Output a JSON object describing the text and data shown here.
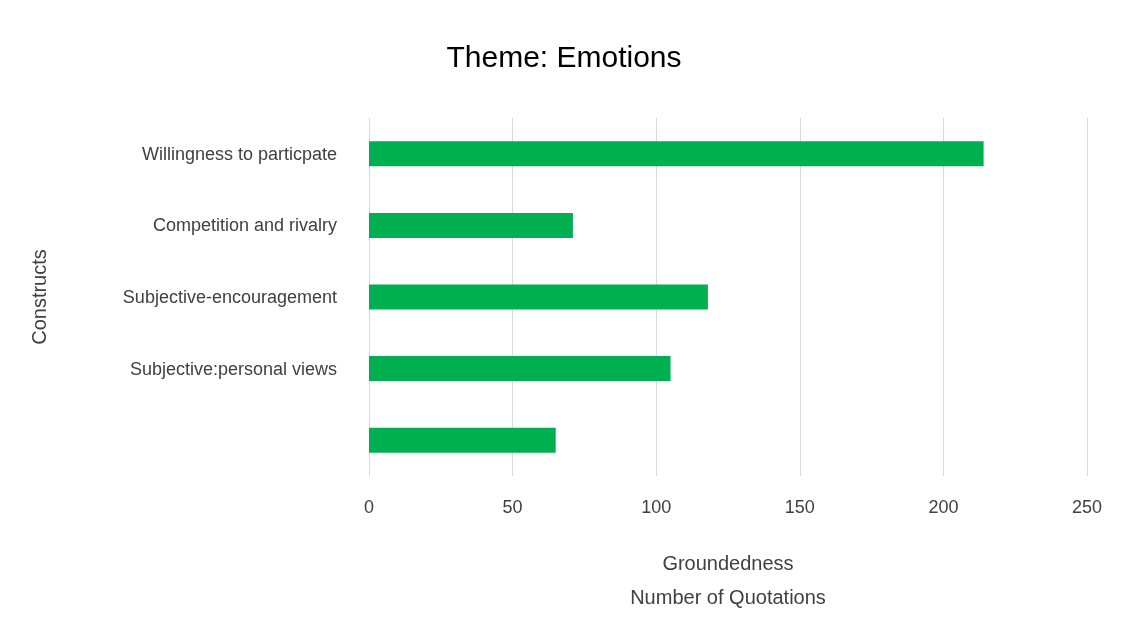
{
  "chart_data": {
    "type": "bar",
    "orientation": "horizontal",
    "title": "Theme: Emotions",
    "xlabel": "Groundedness\nNumber of Quotations",
    "ylabel": "Constructs",
    "categories": [
      "Willingness to particpate",
      "Competition and rivalry",
      "Subjective-encouragement",
      "Subjective:personal views",
      null
    ],
    "values": [
      214,
      71,
      118,
      105,
      65
    ],
    "color": "#00b050",
    "xlim": [
      0,
      250
    ],
    "xticks": [
      0,
      50,
      100,
      150,
      200,
      250
    ],
    "grid": "x"
  }
}
